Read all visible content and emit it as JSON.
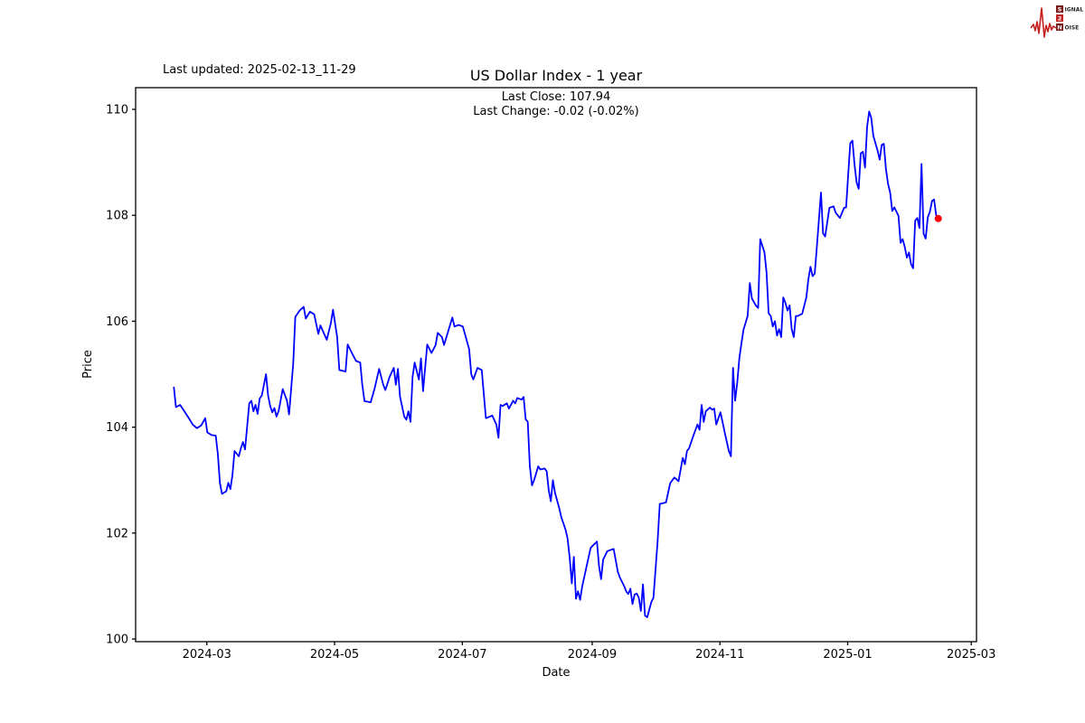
{
  "header": {
    "last_updated": "Last updated: 2025-02-13_11-29"
  },
  "logo": {
    "letter1": "S",
    "word1_rest": "IGNAL",
    "digit": "2",
    "letter2": "N",
    "word2_rest": "OISE",
    "waveform_color": "#c41e1e",
    "box_dark": "#7a1a1a",
    "box_red": "#c32525"
  },
  "chart_data": {
    "type": "line",
    "title": "US Dollar Index - 1 year",
    "subtitle1": "Last Close: 107.94",
    "subtitle2": "Last Change: -0.02 (-0.02%)",
    "xlabel": "Date",
    "ylabel": "Price",
    "grid": false,
    "legend": "none",
    "background": "#ffffff",
    "axis_color": "#000000",
    "ylim": [
      99.95,
      110.41
    ],
    "xlim_days": [
      0,
      401.5
    ],
    "y_ticks": [
      100,
      102,
      104,
      106,
      108,
      110
    ],
    "x_ticks": [
      {
        "label": "2024-03",
        "day": 34
      },
      {
        "label": "2024-05",
        "day": 95
      },
      {
        "label": "2024-07",
        "day": 156
      },
      {
        "label": "2024-09",
        "day": 218
      },
      {
        "label": "2024-11",
        "day": 279
      },
      {
        "label": "2025-01",
        "day": 340
      },
      {
        "label": "2025-03",
        "day": 399
      }
    ],
    "last_point": {
      "value": 107.94,
      "color": "#ff0000"
    },
    "series": [
      {
        "name": "US Dollar Index",
        "color": "#0000ff",
        "start_day_offset": 18.25,
        "points": [
          [
            0,
            104.75
          ],
          [
            1,
            104.38
          ],
          [
            3,
            104.42
          ],
          [
            5,
            104.3
          ],
          [
            7,
            104.18
          ],
          [
            9,
            104.05
          ],
          [
            11,
            103.98
          ],
          [
            13,
            104.03
          ],
          [
            15,
            104.17
          ],
          [
            16,
            103.9
          ],
          [
            18,
            103.85
          ],
          [
            20,
            103.84
          ],
          [
            21,
            103.5
          ],
          [
            22,
            102.95
          ],
          [
            23,
            102.74
          ],
          [
            25,
            102.79
          ],
          [
            26,
            102.95
          ],
          [
            27,
            102.83
          ],
          [
            28,
            103.1
          ],
          [
            29,
            103.55
          ],
          [
            31,
            103.45
          ],
          [
            32,
            103.6
          ],
          [
            33,
            103.72
          ],
          [
            34,
            103.58
          ],
          [
            36,
            104.45
          ],
          [
            37,
            104.5
          ],
          [
            38,
            104.3
          ],
          [
            39,
            104.42
          ],
          [
            40,
            104.25
          ],
          [
            41,
            104.54
          ],
          [
            42,
            104.6
          ],
          [
            44,
            105.0
          ],
          [
            45,
            104.6
          ],
          [
            46,
            104.4
          ],
          [
            47,
            104.28
          ],
          [
            48,
            104.36
          ],
          [
            49,
            104.2
          ],
          [
            50,
            104.3
          ],
          [
            52,
            104.72
          ],
          [
            54,
            104.5
          ],
          [
            55,
            104.24
          ],
          [
            57,
            105.2
          ],
          [
            58,
            106.08
          ],
          [
            60,
            106.2
          ],
          [
            62,
            106.27
          ],
          [
            63,
            106.05
          ],
          [
            65,
            106.18
          ],
          [
            67,
            106.13
          ],
          [
            69,
            105.76
          ],
          [
            70,
            105.92
          ],
          [
            73,
            105.65
          ],
          [
            75,
            105.97
          ],
          [
            76,
            106.22
          ],
          [
            78,
            105.7
          ],
          [
            79,
            105.08
          ],
          [
            82,
            105.05
          ],
          [
            83,
            105.56
          ],
          [
            85,
            105.4
          ],
          [
            87,
            105.25
          ],
          [
            89,
            105.22
          ],
          [
            90,
            104.8
          ],
          [
            91,
            104.49
          ],
          [
            94,
            104.47
          ],
          [
            96,
            104.75
          ],
          [
            98,
            105.1
          ],
          [
            100,
            104.8
          ],
          [
            101,
            104.7
          ],
          [
            103,
            104.95
          ],
          [
            105,
            105.12
          ],
          [
            106,
            104.8
          ],
          [
            107,
            105.1
          ],
          [
            108,
            104.58
          ],
          [
            110,
            104.2
          ],
          [
            111,
            104.14
          ],
          [
            112,
            104.3
          ],
          [
            113,
            104.1
          ],
          [
            114,
            104.95
          ],
          [
            115,
            105.22
          ],
          [
            117,
            104.9
          ],
          [
            118,
            105.3
          ],
          [
            119,
            104.68
          ],
          [
            121,
            105.56
          ],
          [
            123,
            105.4
          ],
          [
            125,
            105.55
          ],
          [
            126,
            105.78
          ],
          [
            128,
            105.7
          ],
          [
            129,
            105.55
          ],
          [
            133,
            106.07
          ],
          [
            134,
            105.9
          ],
          [
            136,
            105.93
          ],
          [
            138,
            105.9
          ],
          [
            141,
            105.47
          ],
          [
            142,
            105.0
          ],
          [
            143,
            104.9
          ],
          [
            145,
            105.12
          ],
          [
            147,
            105.08
          ],
          [
            149,
            104.17
          ],
          [
            151,
            104.2
          ],
          [
            152,
            104.22
          ],
          [
            154,
            104.05
          ],
          [
            155,
            103.8
          ],
          [
            156,
            104.42
          ],
          [
            157,
            104.4
          ],
          [
            159,
            104.45
          ],
          [
            160,
            104.35
          ],
          [
            162,
            104.5
          ],
          [
            163,
            104.45
          ],
          [
            164,
            104.55
          ],
          [
            166,
            104.52
          ],
          [
            167,
            104.57
          ],
          [
            168,
            104.15
          ],
          [
            169,
            104.1
          ],
          [
            170,
            103.26
          ],
          [
            171,
            102.9
          ],
          [
            172,
            103.0
          ],
          [
            174,
            103.26
          ],
          [
            175,
            103.2
          ],
          [
            177,
            103.22
          ],
          [
            178,
            103.17
          ],
          [
            179,
            102.81
          ],
          [
            180,
            102.6
          ],
          [
            181,
            103.0
          ],
          [
            182,
            102.76
          ],
          [
            184,
            102.47
          ],
          [
            185,
            102.3
          ],
          [
            187,
            102.07
          ],
          [
            188,
            101.9
          ],
          [
            189,
            101.53
          ],
          [
            190,
            101.05
          ],
          [
            191,
            101.55
          ],
          [
            192,
            100.76
          ],
          [
            193,
            100.9
          ],
          [
            194,
            100.74
          ],
          [
            195,
            101.0
          ],
          [
            199,
            101.72
          ],
          [
            200,
            101.76
          ],
          [
            202,
            101.84
          ],
          [
            203,
            101.38
          ],
          [
            204,
            101.13
          ],
          [
            205,
            101.5
          ],
          [
            207,
            101.66
          ],
          [
            210,
            101.7
          ],
          [
            212,
            101.27
          ],
          [
            213,
            101.16
          ],
          [
            215,
            101.0
          ],
          [
            216,
            100.9
          ],
          [
            217,
            100.85
          ],
          [
            218,
            100.95
          ],
          [
            219,
            100.66
          ],
          [
            220,
            100.84
          ],
          [
            221,
            100.86
          ],
          [
            222,
            100.78
          ],
          [
            223,
            100.53
          ],
          [
            224,
            101.03
          ],
          [
            225,
            100.44
          ],
          [
            226,
            100.41
          ],
          [
            228,
            100.7
          ],
          [
            229,
            100.78
          ],
          [
            231,
            101.84
          ],
          [
            232,
            102.55
          ],
          [
            234,
            102.57
          ],
          [
            235,
            102.58
          ],
          [
            237,
            102.94
          ],
          [
            238,
            103.0
          ],
          [
            239,
            103.05
          ],
          [
            241,
            102.98
          ],
          [
            243,
            103.42
          ],
          [
            244,
            103.3
          ],
          [
            245,
            103.55
          ],
          [
            246,
            103.6
          ],
          [
            248,
            103.83
          ],
          [
            250,
            104.05
          ],
          [
            251,
            103.95
          ],
          [
            252,
            104.42
          ],
          [
            253,
            104.1
          ],
          [
            254,
            104.3
          ],
          [
            256,
            104.37
          ],
          [
            257,
            104.33
          ],
          [
            258,
            104.35
          ],
          [
            259,
            104.05
          ],
          [
            261,
            104.28
          ],
          [
            262,
            104.1
          ],
          [
            263,
            103.9
          ],
          [
            265,
            103.55
          ],
          [
            266,
            103.45
          ],
          [
            267,
            105.12
          ],
          [
            268,
            104.5
          ],
          [
            269,
            104.84
          ],
          [
            270,
            105.3
          ],
          [
            271,
            105.58
          ],
          [
            272,
            105.84
          ],
          [
            274,
            106.1
          ],
          [
            275,
            106.72
          ],
          [
            276,
            106.43
          ],
          [
            278,
            106.29
          ],
          [
            279,
            106.25
          ],
          [
            280,
            107.55
          ],
          [
            282,
            107.3
          ],
          [
            283,
            106.92
          ],
          [
            284,
            106.15
          ],
          [
            285,
            106.1
          ],
          [
            286,
            105.9
          ],
          [
            287,
            106.0
          ],
          [
            288,
            105.73
          ],
          [
            289,
            105.85
          ],
          [
            290,
            105.7
          ],
          [
            291,
            106.45
          ],
          [
            292,
            106.35
          ],
          [
            293,
            106.2
          ],
          [
            294,
            106.3
          ],
          [
            295,
            105.85
          ],
          [
            296,
            105.7
          ],
          [
            297,
            106.1
          ],
          [
            298,
            106.1
          ],
          [
            300,
            106.14
          ],
          [
            302,
            106.45
          ],
          [
            303,
            106.8
          ],
          [
            304,
            107.03
          ],
          [
            305,
            106.85
          ],
          [
            306,
            106.9
          ],
          [
            307,
            107.4
          ],
          [
            309,
            108.43
          ],
          [
            310,
            107.66
          ],
          [
            311,
            107.6
          ],
          [
            313,
            108.14
          ],
          [
            315,
            108.17
          ],
          [
            316,
            108.05
          ],
          [
            317,
            108.0
          ],
          [
            318,
            107.95
          ],
          [
            320,
            108.14
          ],
          [
            321,
            108.15
          ],
          [
            322,
            108.77
          ],
          [
            323,
            109.36
          ],
          [
            324,
            109.41
          ],
          [
            325,
            108.96
          ],
          [
            326,
            108.62
          ],
          [
            327,
            108.5
          ],
          [
            328,
            109.17
          ],
          [
            329,
            109.2
          ],
          [
            330,
            108.9
          ],
          [
            331,
            109.67
          ],
          [
            332,
            109.96
          ],
          [
            333,
            109.84
          ],
          [
            334,
            109.5
          ],
          [
            336,
            109.22
          ],
          [
            337,
            109.05
          ],
          [
            338,
            109.33
          ],
          [
            339,
            109.35
          ],
          [
            340,
            108.88
          ],
          [
            341,
            108.6
          ],
          [
            342,
            108.43
          ],
          [
            343,
            108.08
          ],
          [
            344,
            108.15
          ],
          [
            346,
            107.99
          ],
          [
            347,
            107.48
          ],
          [
            348,
            107.55
          ],
          [
            349,
            107.4
          ],
          [
            350,
            107.2
          ],
          [
            351,
            107.3
          ],
          [
            352,
            107.08
          ],
          [
            353,
            107.0
          ],
          [
            354,
            107.9
          ],
          [
            355,
            107.95
          ],
          [
            356,
            107.76
          ],
          [
            357,
            108.97
          ],
          [
            358,
            107.65
          ],
          [
            359,
            107.56
          ],
          [
            360,
            107.96
          ],
          [
            361,
            108.07
          ],
          [
            362,
            108.27
          ],
          [
            363,
            108.3
          ],
          [
            364,
            108.0
          ],
          [
            365,
            107.94
          ]
        ]
      }
    ]
  }
}
